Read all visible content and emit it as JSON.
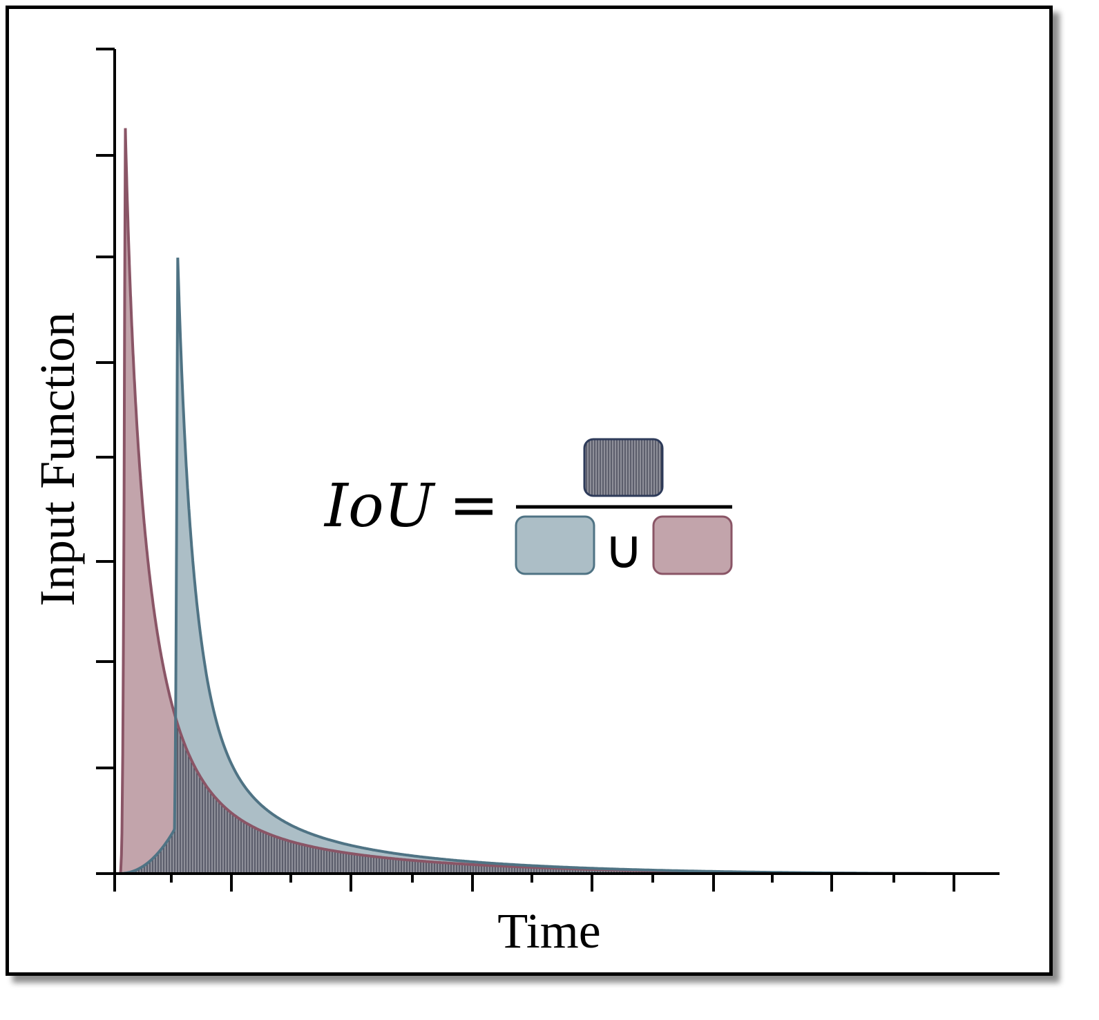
{
  "figure": {
    "ylabel": "Input Function",
    "xlabel": "Time",
    "equation": {
      "lhs": "IoU",
      "equals": "=",
      "union": "∪"
    },
    "series": [
      {
        "key": "pink",
        "peak_position": 0.012,
        "peak_height": 0.915
      },
      {
        "key": "blue",
        "peak_position": 0.072,
        "peak_height": 0.756
      }
    ],
    "x_end": 1.0,
    "colors": {
      "pink_fill": "#c2a4ab",
      "pink_stroke": "#8a5566",
      "blue_fill": "#acbec6",
      "blue_stroke": "#4f7384",
      "intersection_fill": "#8e8f99",
      "intersection_hatch": "#3b3d4d",
      "intersection_stroke": "#2e3b5a",
      "axis": "#000000"
    }
  }
}
